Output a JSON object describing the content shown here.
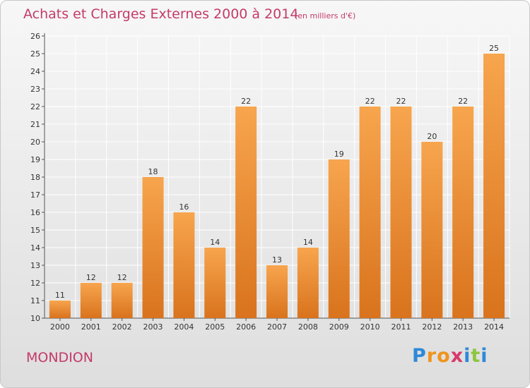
{
  "header": {
    "title": "Achats et Charges Externes 2000 à 2014",
    "subtitle": "(en milliers d'€)"
  },
  "footer": {
    "commune": "MONDION",
    "logo_text": "Proxiti"
  },
  "colors": {
    "bar_top": "#f7a54e",
    "bar_bottom": "#d9731d",
    "title": "#c43a6a",
    "grid": "#ffffff"
  },
  "chart_data": {
    "type": "bar",
    "title": "Achats et Charges Externes 2000 à 2014",
    "subtitle": "(en milliers d'€)",
    "xlabel": "",
    "ylabel": "",
    "categories": [
      "2000",
      "2001",
      "2002",
      "2003",
      "2004",
      "2005",
      "2006",
      "2007",
      "2008",
      "2009",
      "2010",
      "2011",
      "2012",
      "2013",
      "2014"
    ],
    "values": [
      11,
      12,
      12,
      18,
      16,
      14,
      22,
      13,
      14,
      19,
      22,
      22,
      20,
      22,
      25
    ],
    "ylim": [
      10,
      26
    ],
    "yticks": [
      10,
      11,
      12,
      13,
      14,
      15,
      16,
      17,
      18,
      19,
      20,
      21,
      22,
      23,
      24,
      25,
      26
    ],
    "grid": true,
    "data_labels": true
  }
}
